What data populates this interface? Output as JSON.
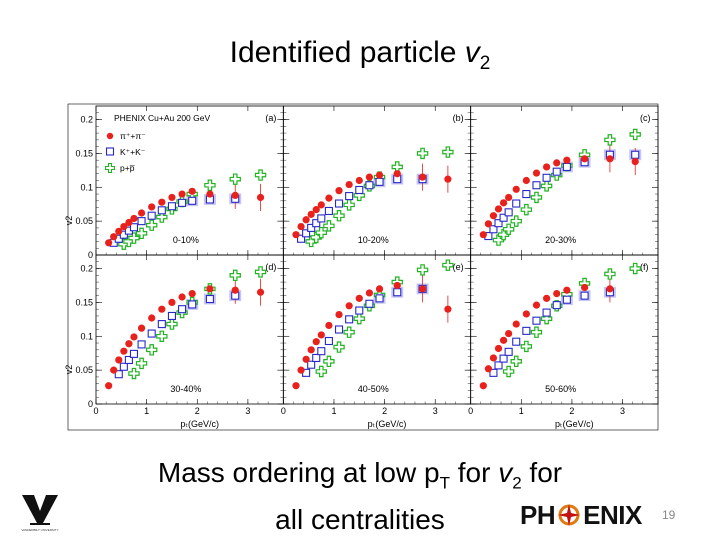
{
  "slide": {
    "title_prefix": "Identified particle ",
    "title_var": "v",
    "title_sub": "2",
    "caption_line1_a": "Mass ordering at low p",
    "caption_line1_sub_T": "T",
    "caption_line1_b": " for ",
    "caption_line1_var": "v",
    "caption_line1_sub_2": "2",
    "caption_line1_c": " for",
    "caption_line2": "all centralities",
    "slide_number": "19",
    "logo_text_a": "PH",
    "logo_text_b": "ENIX",
    "logo_vu_text": "VANDERBILT UNIVERSITY"
  },
  "chart_data": {
    "type": "scatter",
    "title": "PHENIX Cu+Au 200 GeV",
    "xlabel": "p_T (GeV/c)",
    "ylabel": "v_2",
    "xlim": [
      0,
      3.7
    ],
    "ylim": [
      0,
      0.22
    ],
    "xticks": [
      0,
      1,
      2,
      3
    ],
    "yticks": [
      0,
      0.05,
      0.1,
      0.15,
      0.2
    ],
    "ytick_labels": [
      "0",
      "0.05",
      "0.1",
      "0.15",
      "0.2"
    ],
    "legend": [
      "π⁺+π⁻",
      "K⁺+K⁻",
      "p+p̅"
    ],
    "colors": {
      "pion": "#e8211c",
      "kaon": "#2828c8",
      "proton": "#21b321",
      "sys_band": "#c6c6f0"
    },
    "panels": [
      {
        "label": "(a)",
        "centrality": "0-10%",
        "pion": [
          [
            0.25,
            0.018
          ],
          [
            0.35,
            0.027
          ],
          [
            0.45,
            0.035
          ],
          [
            0.55,
            0.042
          ],
          [
            0.65,
            0.048
          ],
          [
            0.75,
            0.054
          ],
          [
            0.9,
            0.062
          ],
          [
            1.1,
            0.071
          ],
          [
            1.3,
            0.078
          ],
          [
            1.5,
            0.085
          ],
          [
            1.7,
            0.09
          ],
          [
            1.9,
            0.094
          ],
          [
            2.25,
            0.09
          ],
          [
            2.75,
            0.088
          ],
          [
            3.25,
            0.085
          ]
        ],
        "kaon": [
          [
            0.35,
            0.018
          ],
          [
            0.45,
            0.024
          ],
          [
            0.55,
            0.03
          ],
          [
            0.65,
            0.036
          ],
          [
            0.75,
            0.041
          ],
          [
            0.9,
            0.05
          ],
          [
            1.1,
            0.058
          ],
          [
            1.3,
            0.066
          ],
          [
            1.5,
            0.072
          ],
          [
            1.7,
            0.077
          ],
          [
            1.9,
            0.08
          ],
          [
            2.25,
            0.082
          ],
          [
            2.75,
            0.083
          ]
        ],
        "proton": [
          [
            0.55,
            0.016
          ],
          [
            0.65,
            0.02
          ],
          [
            0.75,
            0.025
          ],
          [
            0.9,
            0.032
          ],
          [
            1.1,
            0.044
          ],
          [
            1.3,
            0.056
          ],
          [
            1.5,
            0.068
          ],
          [
            1.7,
            0.079
          ],
          [
            1.9,
            0.09
          ],
          [
            2.25,
            0.103
          ],
          [
            2.75,
            0.112
          ],
          [
            3.25,
            0.118
          ]
        ]
      },
      {
        "label": "(b)",
        "centrality": "10-20%",
        "pion": [
          [
            0.25,
            0.03
          ],
          [
            0.35,
            0.042
          ],
          [
            0.45,
            0.052
          ],
          [
            0.55,
            0.06
          ],
          [
            0.65,
            0.067
          ],
          [
            0.75,
            0.074
          ],
          [
            0.9,
            0.084
          ],
          [
            1.1,
            0.095
          ],
          [
            1.3,
            0.104
          ],
          [
            1.5,
            0.11
          ],
          [
            1.7,
            0.115
          ],
          [
            1.9,
            0.118
          ],
          [
            2.25,
            0.12
          ],
          [
            2.75,
            0.115
          ],
          [
            3.25,
            0.112
          ]
        ],
        "kaon": [
          [
            0.35,
            0.024
          ],
          [
            0.45,
            0.032
          ],
          [
            0.55,
            0.04
          ],
          [
            0.65,
            0.047
          ],
          [
            0.75,
            0.054
          ],
          [
            0.9,
            0.065
          ],
          [
            1.1,
            0.076
          ],
          [
            1.3,
            0.087
          ],
          [
            1.5,
            0.096
          ],
          [
            1.7,
            0.103
          ],
          [
            1.9,
            0.108
          ],
          [
            2.25,
            0.112
          ],
          [
            2.75,
            0.112
          ]
        ],
        "proton": [
          [
            0.55,
            0.02
          ],
          [
            0.65,
            0.026
          ],
          [
            0.75,
            0.033
          ],
          [
            0.9,
            0.043
          ],
          [
            1.1,
            0.058
          ],
          [
            1.3,
            0.074
          ],
          [
            1.5,
            0.088
          ],
          [
            1.7,
            0.102
          ],
          [
            1.9,
            0.115
          ],
          [
            2.25,
            0.13
          ],
          [
            2.75,
            0.15
          ],
          [
            3.25,
            0.152
          ]
        ]
      },
      {
        "label": "(c)",
        "centrality": "20-30%",
        "pion": [
          [
            0.25,
            0.03
          ],
          [
            0.35,
            0.046
          ],
          [
            0.45,
            0.058
          ],
          [
            0.55,
            0.068
          ],
          [
            0.65,
            0.077
          ],
          [
            0.75,
            0.085
          ],
          [
            0.9,
            0.097
          ],
          [
            1.1,
            0.11
          ],
          [
            1.3,
            0.121
          ],
          [
            1.5,
            0.13
          ],
          [
            1.7,
            0.136
          ],
          [
            1.9,
            0.14
          ],
          [
            2.25,
            0.142
          ],
          [
            2.75,
            0.142
          ],
          [
            3.25,
            0.138
          ]
        ],
        "kaon": [
          [
            0.35,
            0.028
          ],
          [
            0.45,
            0.038
          ],
          [
            0.55,
            0.047
          ],
          [
            0.65,
            0.055
          ],
          [
            0.75,
            0.063
          ],
          [
            0.9,
            0.076
          ],
          [
            1.1,
            0.09
          ],
          [
            1.3,
            0.103
          ],
          [
            1.5,
            0.114
          ],
          [
            1.7,
            0.123
          ],
          [
            1.9,
            0.13
          ],
          [
            2.25,
            0.137
          ],
          [
            2.75,
            0.148
          ],
          [
            3.25,
            0.148
          ]
        ],
        "proton": [
          [
            0.55,
            0.022
          ],
          [
            0.65,
            0.03
          ],
          [
            0.75,
            0.038
          ],
          [
            0.9,
            0.05
          ],
          [
            1.1,
            0.067
          ],
          [
            1.3,
            0.085
          ],
          [
            1.5,
            0.102
          ],
          [
            1.7,
            0.118
          ],
          [
            1.9,
            0.132
          ],
          [
            2.25,
            0.148
          ],
          [
            2.75,
            0.17
          ],
          [
            3.25,
            0.178
          ]
        ]
      },
      {
        "label": "(d)",
        "centrality": "30-40%",
        "pion": [
          [
            0.25,
            0.027
          ],
          [
            0.35,
            0.05
          ],
          [
            0.45,
            0.065
          ],
          [
            0.55,
            0.078
          ],
          [
            0.65,
            0.089
          ],
          [
            0.75,
            0.099
          ],
          [
            0.9,
            0.112
          ],
          [
            1.1,
            0.127
          ],
          [
            1.3,
            0.14
          ],
          [
            1.5,
            0.15
          ],
          [
            1.7,
            0.158
          ],
          [
            1.9,
            0.163
          ],
          [
            2.25,
            0.17
          ],
          [
            2.75,
            0.168
          ],
          [
            3.25,
            0.165
          ]
        ],
        "kaon": [
          [
            0.45,
            0.044
          ],
          [
            0.55,
            0.055
          ],
          [
            0.65,
            0.065
          ],
          [
            0.75,
            0.074
          ],
          [
            0.9,
            0.088
          ],
          [
            1.1,
            0.104
          ],
          [
            1.3,
            0.118
          ],
          [
            1.5,
            0.13
          ],
          [
            1.7,
            0.14
          ],
          [
            1.9,
            0.147
          ],
          [
            2.25,
            0.155
          ],
          [
            2.75,
            0.16
          ]
        ],
        "proton": [
          [
            0.75,
            0.045
          ],
          [
            0.9,
            0.06
          ],
          [
            1.1,
            0.08
          ],
          [
            1.3,
            0.1
          ],
          [
            1.5,
            0.118
          ],
          [
            1.7,
            0.135
          ],
          [
            1.9,
            0.15
          ],
          [
            2.25,
            0.17
          ],
          [
            2.75,
            0.19
          ],
          [
            3.25,
            0.195
          ]
        ]
      },
      {
        "label": "(e)",
        "centrality": "40-50%",
        "pion": [
          [
            0.25,
            0.027
          ],
          [
            0.35,
            0.05
          ],
          [
            0.45,
            0.066
          ],
          [
            0.55,
            0.08
          ],
          [
            0.65,
            0.092
          ],
          [
            0.75,
            0.102
          ],
          [
            0.9,
            0.116
          ],
          [
            1.1,
            0.132
          ],
          [
            1.3,
            0.145
          ],
          [
            1.5,
            0.156
          ],
          [
            1.7,
            0.164
          ],
          [
            1.9,
            0.17
          ],
          [
            2.25,
            0.175
          ],
          [
            2.75,
            0.17
          ],
          [
            3.25,
            0.14
          ]
        ],
        "kaon": [
          [
            0.45,
            0.046
          ],
          [
            0.55,
            0.058
          ],
          [
            0.65,
            0.068
          ],
          [
            0.75,
            0.078
          ],
          [
            0.9,
            0.093
          ],
          [
            1.1,
            0.11
          ],
          [
            1.3,
            0.125
          ],
          [
            1.5,
            0.138
          ],
          [
            1.7,
            0.148
          ],
          [
            1.9,
            0.156
          ],
          [
            2.25,
            0.165
          ],
          [
            2.75,
            0.17
          ]
        ],
        "proton": [
          [
            0.75,
            0.048
          ],
          [
            0.9,
            0.063
          ],
          [
            1.1,
            0.084
          ],
          [
            1.3,
            0.106
          ],
          [
            1.5,
            0.126
          ],
          [
            1.7,
            0.145
          ],
          [
            1.9,
            0.161
          ],
          [
            2.25,
            0.18
          ],
          [
            2.75,
            0.198
          ],
          [
            3.25,
            0.205
          ]
        ]
      },
      {
        "label": "(f)",
        "centrality": "50-60%",
        "pion": [
          [
            0.25,
            0.027
          ],
          [
            0.35,
            0.052
          ],
          [
            0.45,
            0.068
          ],
          [
            0.55,
            0.082
          ],
          [
            0.65,
            0.094
          ],
          [
            0.75,
            0.104
          ],
          [
            0.9,
            0.118
          ],
          [
            1.1,
            0.133
          ],
          [
            1.3,
            0.146
          ],
          [
            1.5,
            0.156
          ],
          [
            1.7,
            0.163
          ],
          [
            1.9,
            0.168
          ],
          [
            2.25,
            0.172
          ],
          [
            2.75,
            0.17
          ]
        ],
        "kaon": [
          [
            0.45,
            0.046
          ],
          [
            0.55,
            0.057
          ],
          [
            0.65,
            0.067
          ],
          [
            0.75,
            0.077
          ],
          [
            0.9,
            0.092
          ],
          [
            1.1,
            0.108
          ],
          [
            1.3,
            0.123
          ],
          [
            1.5,
            0.135
          ],
          [
            1.7,
            0.146
          ],
          [
            1.9,
            0.154
          ],
          [
            2.25,
            0.16
          ],
          [
            2.75,
            0.165
          ]
        ],
        "proton": [
          [
            0.75,
            0.048
          ],
          [
            0.9,
            0.063
          ],
          [
            1.1,
            0.085
          ],
          [
            1.3,
            0.106
          ],
          [
            1.5,
            0.126
          ],
          [
            1.7,
            0.145
          ],
          [
            1.9,
            0.162
          ],
          [
            2.25,
            0.178
          ],
          [
            2.75,
            0.192
          ],
          [
            3.25,
            0.2
          ]
        ]
      }
    ]
  }
}
